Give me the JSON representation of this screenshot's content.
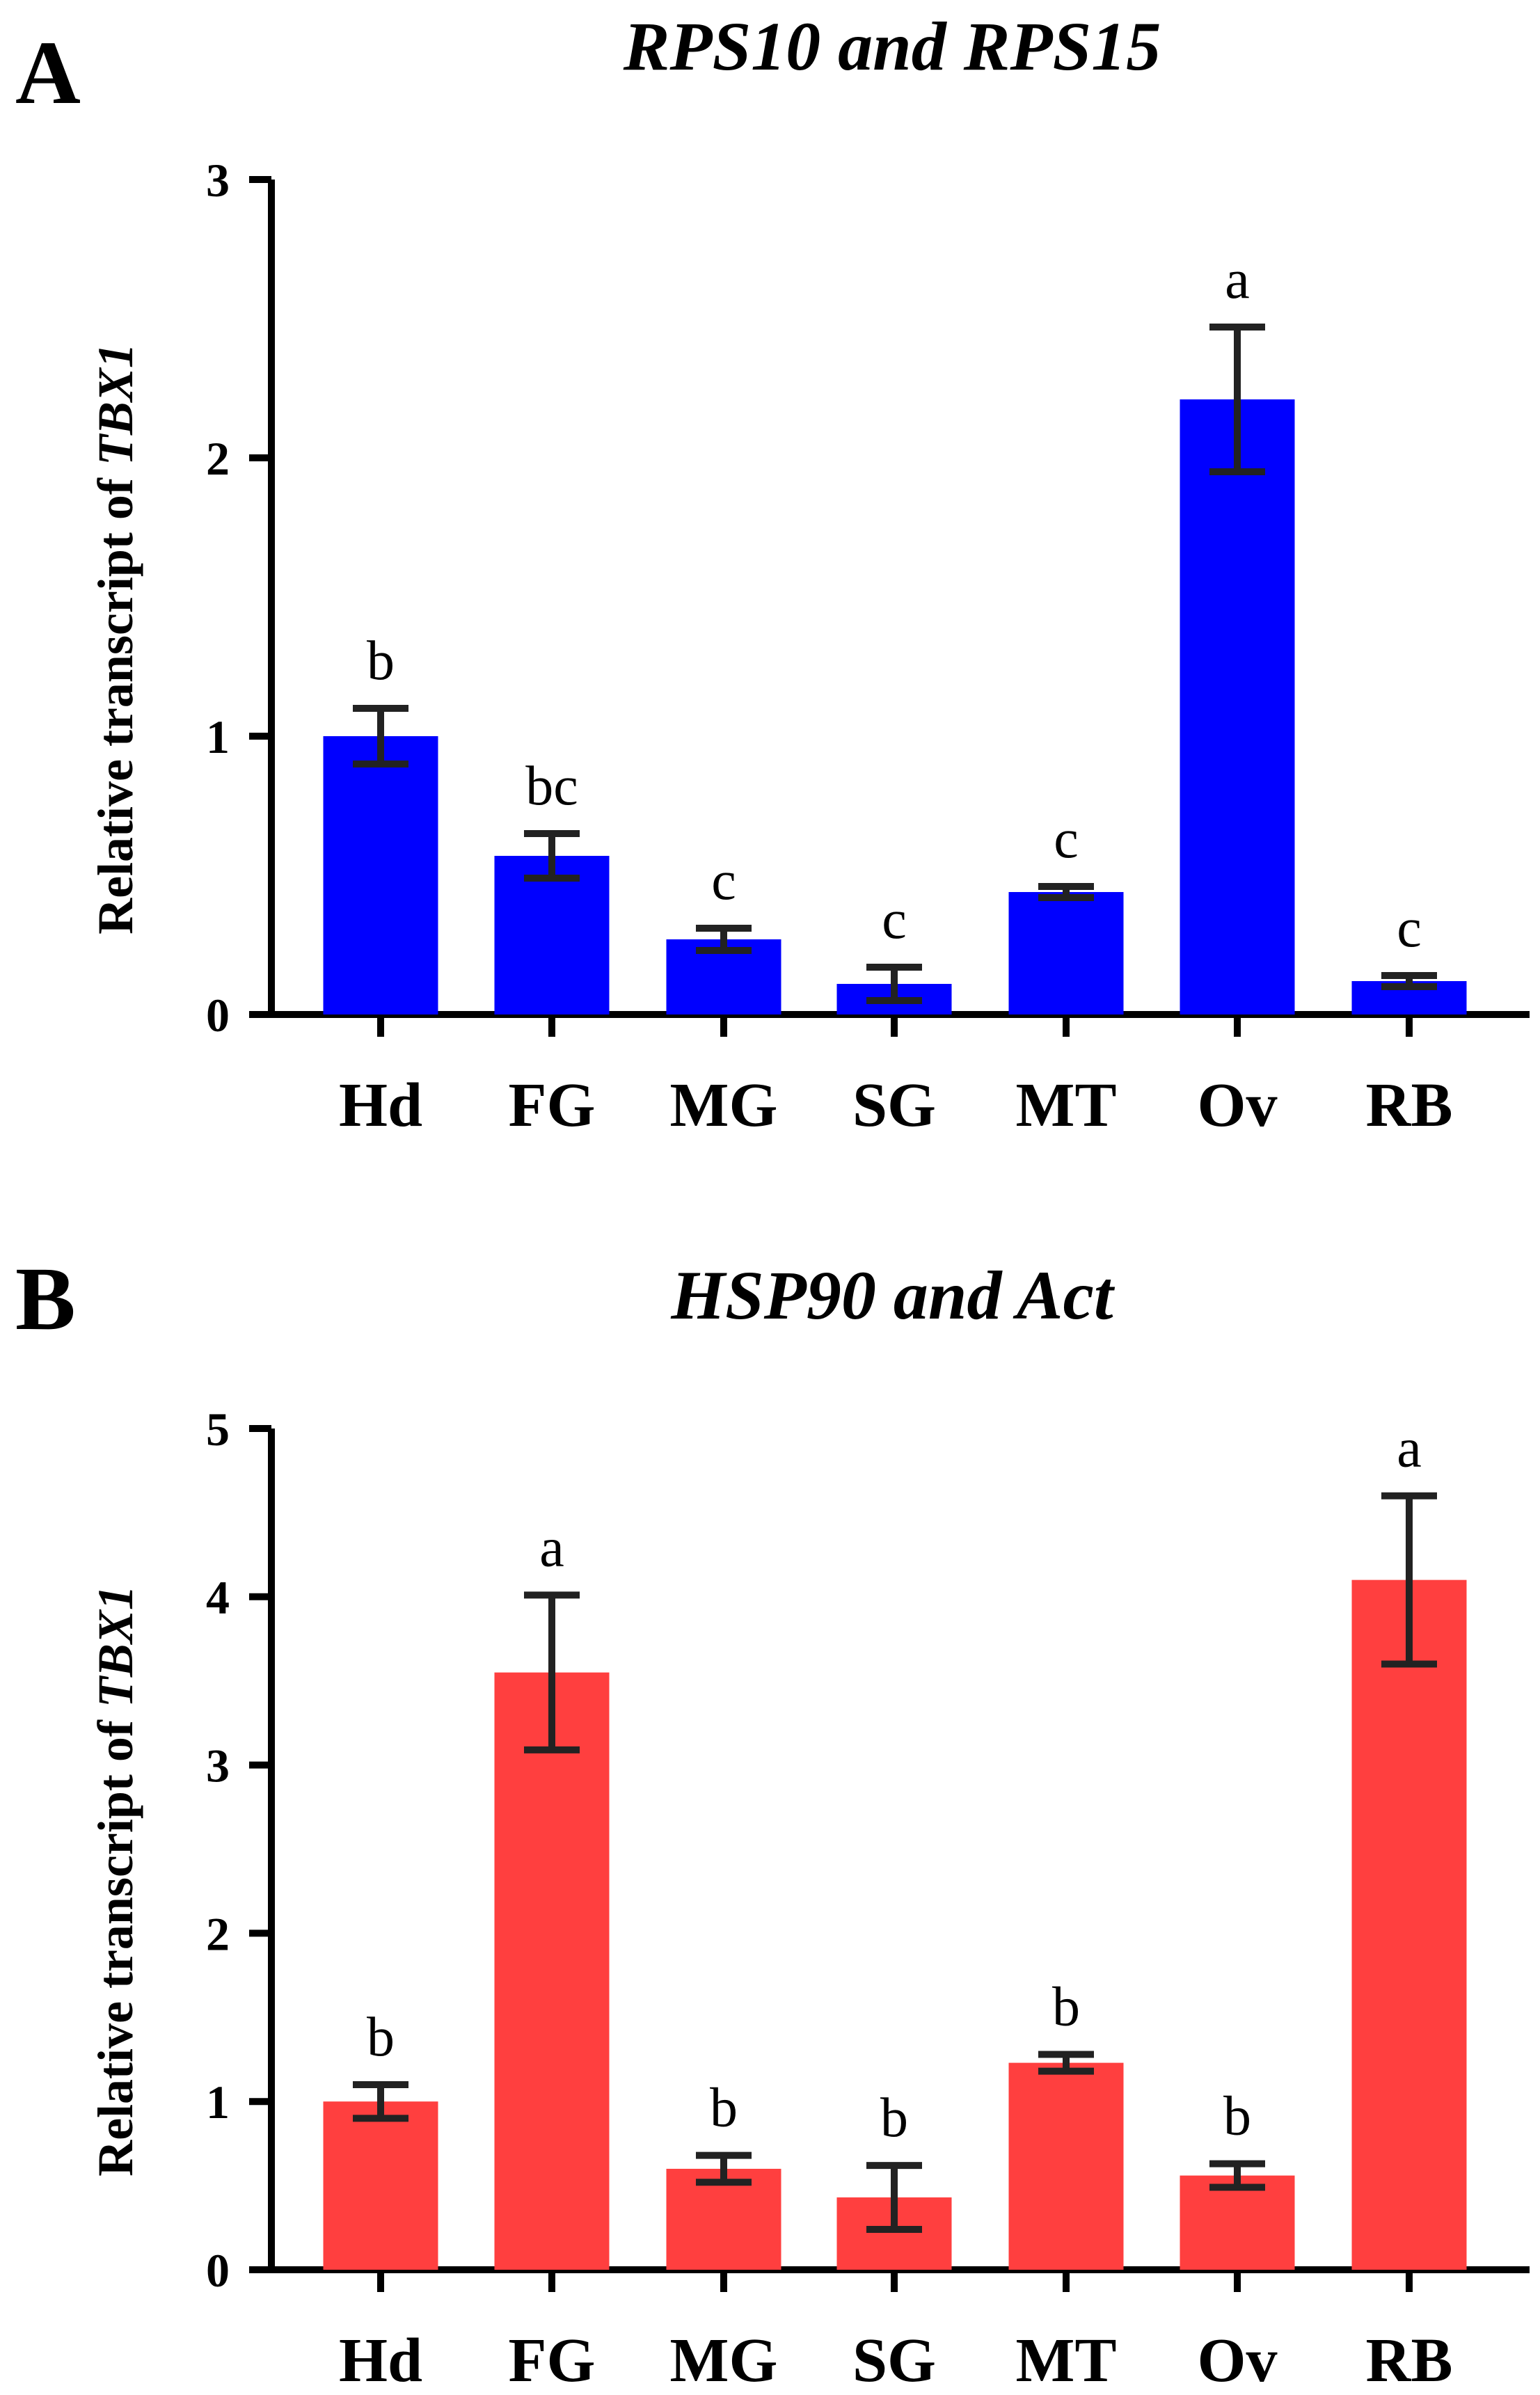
{
  "chart_data": [
    {
      "type": "bar",
      "panel_label": "A",
      "title": "RPS10 and RPS15",
      "ylabel_prefix": "Relative transcript of ",
      "ylabel_gene": "TBX1",
      "xlabel": "",
      "ylim": [
        0,
        3
      ],
      "yticks": [
        "0",
        "1",
        "2",
        "3"
      ],
      "categories": [
        "Hd",
        "FG",
        "MG",
        "SG",
        "MT",
        "Ov",
        "RB"
      ],
      "values": [
        1.0,
        0.57,
        0.27,
        0.11,
        0.44,
        2.21,
        0.12
      ],
      "errors": [
        0.1,
        0.08,
        0.04,
        0.06,
        0.02,
        0.26,
        0.02
      ],
      "significance": [
        "b",
        "bc",
        "c",
        "c",
        "c",
        "a",
        "c"
      ],
      "color": "#0000ff"
    },
    {
      "type": "bar",
      "panel_label": "B",
      "title": "HSP90 and Act",
      "ylabel_prefix": "Relative transcript of ",
      "ylabel_gene": "TBX1",
      "xlabel": "",
      "ylim": [
        0,
        5
      ],
      "yticks": [
        "0",
        "1",
        "2",
        "3",
        "4",
        "5"
      ],
      "categories": [
        "Hd",
        "FG",
        "MG",
        "SG",
        "MT",
        "Ov",
        "RB"
      ],
      "values": [
        1.0,
        3.55,
        0.6,
        0.43,
        1.23,
        0.56,
        4.1
      ],
      "errors": [
        0.1,
        0.46,
        0.08,
        0.19,
        0.05,
        0.07,
        0.5
      ],
      "significance": [
        "b",
        "a",
        "b",
        "b",
        "b",
        "b",
        "a"
      ],
      "color": "#ff3f3f"
    }
  ]
}
